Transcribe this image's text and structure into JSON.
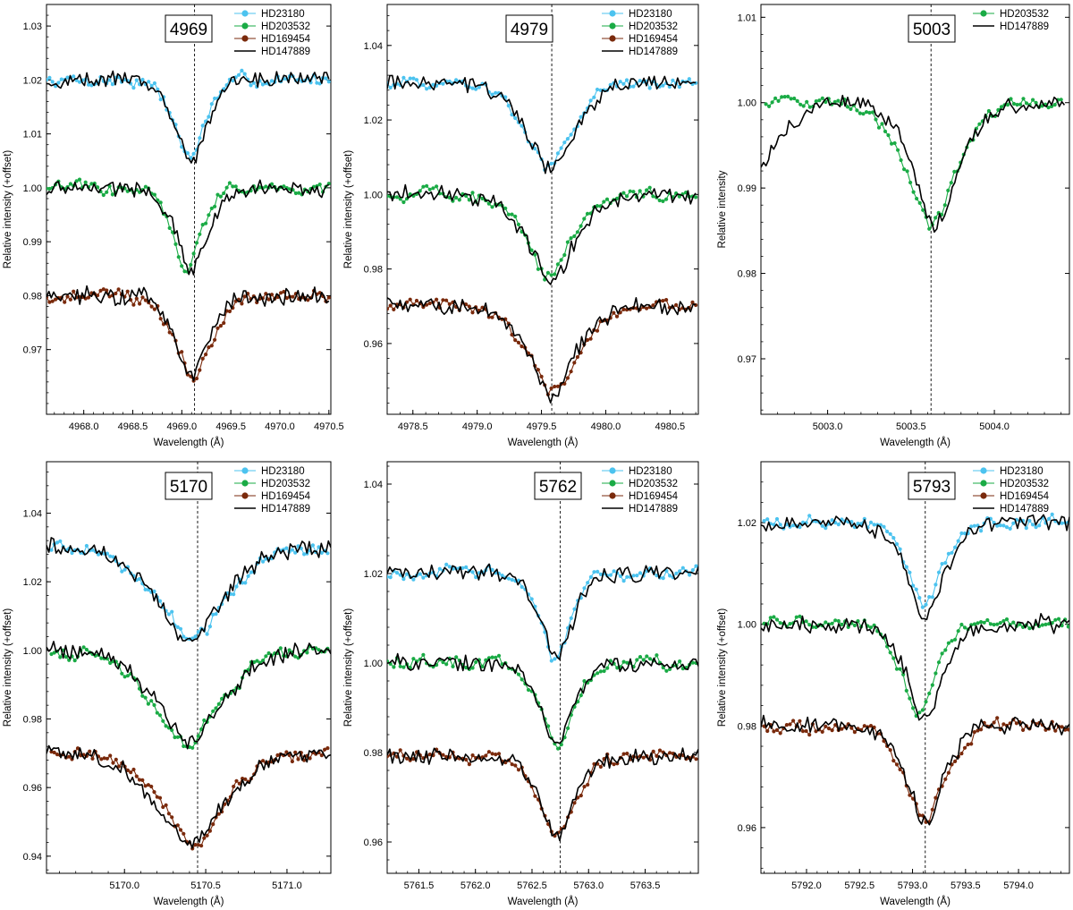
{
  "figure": {
    "colors": {
      "HD23180": "#4cc3ef",
      "HD203532": "#1aab45",
      "HD169454": "#7a2a0c",
      "HD147889": "#000000"
    }
  },
  "chart_data": [
    {
      "type": "line",
      "title": "4969",
      "xlabel": "Wavelength (Å)",
      "ylabel": "Relative intensity (+offset)",
      "xlim": [
        4967.62,
        4970.52
      ],
      "ylim": [
        0.958,
        1.034
      ],
      "xticks": [
        "4968.0",
        "4968.5",
        "4969.0",
        "4969.5",
        "4970.0",
        "4970.5"
      ],
      "yticks": [
        "0.97",
        "0.98",
        "0.99",
        "1.00",
        "1.01",
        "1.02",
        "1.03"
      ],
      "center": 4969.13,
      "legend": [
        "HD23180",
        "HD203532",
        "HD169454",
        "HD147889"
      ],
      "series": [
        {
          "name": "HD23180",
          "kind": "markers",
          "base": 1.02,
          "depth": 0.0145,
          "center": 4969.08,
          "width": 0.18,
          "xmin": 4967.62,
          "xmax": 4970.5
        },
        {
          "name": "HD203532",
          "kind": "markers",
          "base": 1.0,
          "depth": 0.015,
          "center": 4969.05,
          "width": 0.17,
          "xmin": 4967.62,
          "xmax": 4970.5
        },
        {
          "name": "HD169454",
          "kind": "markers",
          "base": 0.98,
          "depth": 0.015,
          "center": 4969.12,
          "width": 0.22,
          "xmin": 4967.62,
          "xmax": 4970.5
        },
        {
          "name": "HD147889",
          "kind": "line",
          "bases": [
            1.02,
            1.0,
            0.98
          ],
          "depth": 0.015,
          "center": 4969.1,
          "width": 0.19,
          "xmin": 4967.62,
          "xmax": 4970.5
        }
      ]
    },
    {
      "type": "line",
      "title": "4979",
      "xlabel": "Wavelength (Å)",
      "ylabel": "Relative intensity (+offset)",
      "xlim": [
        4978.3,
        4980.72
      ],
      "ylim": [
        0.941,
        1.051
      ],
      "xticks": [
        "4978.5",
        "4979.0",
        "4979.5",
        "4980.0",
        "4980.5"
      ],
      "yticks": [
        "0.96",
        "0.98",
        "1.00",
        "1.02",
        "1.04"
      ],
      "center": 4979.58,
      "legend": [
        "HD23180",
        "HD203532",
        "HD169454",
        "HD147889"
      ],
      "series": [
        {
          "name": "HD23180",
          "kind": "markers",
          "base": 1.03,
          "depth": 0.0225,
          "center": 4979.55,
          "width": 0.22,
          "xmin": 4978.3,
          "xmax": 4980.7
        },
        {
          "name": "HD203532",
          "kind": "markers",
          "base": 1.0,
          "depth": 0.022,
          "center": 4979.55,
          "width": 0.2,
          "xmin": 4978.3,
          "xmax": 4980.7
        },
        {
          "name": "HD169454",
          "kind": "markers",
          "base": 0.97,
          "depth": 0.023,
          "center": 4979.6,
          "width": 0.24,
          "xmin": 4978.3,
          "xmax": 4980.7
        },
        {
          "name": "HD147889",
          "kind": "line",
          "bases": [
            1.03,
            1.0,
            0.97
          ],
          "depth": 0.023,
          "center": 4979.58,
          "width": 0.22,
          "xmin": 4978.3,
          "xmax": 4980.7
        }
      ]
    },
    {
      "type": "line",
      "title": "5003",
      "xlabel": "Wavelength (Å)",
      "ylabel": "Relative intensity",
      "xlim": [
        5002.6,
        5004.45
      ],
      "ylim": [
        0.9635,
        1.0115
      ],
      "xticks": [
        "5003.0",
        "5003.5",
        "5004.0"
      ],
      "yticks": [
        "0.97",
        "0.98",
        "0.99",
        "1.00",
        "1.01"
      ],
      "center": 5003.62,
      "legend": [
        "HD203532",
        "HD147889"
      ],
      "series": [
        {
          "name": "HD203532",
          "kind": "markers",
          "base": 1.0,
          "depth": 0.014,
          "center": 5003.63,
          "width": 0.18,
          "xmin": 5002.63,
          "xmax": 5004.4
        },
        {
          "name": "HD147889",
          "kind": "line",
          "bases": [
            1.0
          ],
          "depth": 0.014,
          "center": 5003.65,
          "width": 0.16,
          "xmin": 5002.6,
          "xmax": 5004.42
        }
      ]
    },
    {
      "type": "line",
      "title": "5170",
      "xlabel": "Wavelength (Å)",
      "ylabel": "Relative intensity (+offset)",
      "xlim": [
        5169.52,
        5171.27
      ],
      "ylim": [
        0.935,
        1.055
      ],
      "xticks": [
        "5170.0",
        "5170.5",
        "5171.0"
      ],
      "yticks": [
        "0.94",
        "0.96",
        "0.98",
        "1.00",
        "1.02",
        "1.04"
      ],
      "center": 5170.45,
      "legend": [
        "HD23180",
        "HD203532",
        "HD169454",
        "HD147889"
      ],
      "series": [
        {
          "name": "HD23180",
          "kind": "markers",
          "base": 1.03,
          "depth": 0.027,
          "center": 5170.42,
          "width": 0.25,
          "xmin": 5169.55,
          "xmax": 5171.25
        },
        {
          "name": "HD203532",
          "kind": "markers",
          "base": 1.0,
          "depth": 0.027,
          "center": 5170.38,
          "width": 0.25,
          "xmin": 5169.55,
          "xmax": 5171.25
        },
        {
          "name": "HD169454",
          "kind": "markers",
          "base": 0.97,
          "depth": 0.027,
          "center": 5170.42,
          "width": 0.22,
          "xmin": 5169.55,
          "xmax": 5171.25
        },
        {
          "name": "HD147889",
          "kind": "line",
          "bases": [
            1.03,
            1.0,
            0.97
          ],
          "depth": 0.027,
          "center": 5170.4,
          "width": 0.24,
          "xmin": 5169.52,
          "xmax": 5171.27
        }
      ]
    },
    {
      "type": "line",
      "title": "5762",
      "xlabel": "Wavelength (Å)",
      "ylabel": "Relative intensity (+offset)",
      "xlim": [
        5761.22,
        5763.97
      ],
      "ylim": [
        0.953,
        1.045
      ],
      "xticks": [
        "5761.5",
        "5762.0",
        "5762.5",
        "5763.0",
        "5763.5"
      ],
      "yticks": [
        "0.96",
        "0.98",
        "1.00",
        "1.02",
        "1.04"
      ],
      "center": 5762.75,
      "legend": [
        "HD23180",
        "HD203532",
        "HD169454",
        "HD147889"
      ],
      "series": [
        {
          "name": "HD23180",
          "kind": "markers",
          "base": 1.02,
          "depth": 0.019,
          "center": 5762.7,
          "width": 0.16,
          "xmin": 5761.22,
          "xmax": 5763.95
        },
        {
          "name": "HD203532",
          "kind": "markers",
          "base": 1.0,
          "depth": 0.019,
          "center": 5762.72,
          "width": 0.16,
          "xmin": 5761.22,
          "xmax": 5763.95
        },
        {
          "name": "HD169454",
          "kind": "markers",
          "base": 0.979,
          "depth": 0.018,
          "center": 5762.72,
          "width": 0.18,
          "xmin": 5761.22,
          "xmax": 5763.95
        },
        {
          "name": "HD147889",
          "kind": "line",
          "bases": [
            1.02,
            1.0,
            0.979
          ],
          "depth": 0.019,
          "center": 5762.72,
          "width": 0.16,
          "xmin": 5761.22,
          "xmax": 5763.97
        }
      ]
    },
    {
      "type": "line",
      "title": "5793",
      "xlabel": "Wavelength (Å)",
      "ylabel": "Relative intensity (+offset)",
      "xlim": [
        5791.57,
        5794.48
      ],
      "ylim": [
        0.951,
        1.032
      ],
      "xticks": [
        "5792.0",
        "5792.5",
        "5793.0",
        "5793.5",
        "5794.0"
      ],
      "yticks": [
        "0.96",
        "0.98",
        "1.00",
        "1.02"
      ],
      "center": 5793.12,
      "legend": [
        "HD23180",
        "HD203532",
        "HD169454",
        "HD147889"
      ],
      "series": [
        {
          "name": "HD23180",
          "kind": "markers",
          "base": 1.02,
          "depth": 0.016,
          "center": 5793.12,
          "width": 0.2,
          "xmin": 5791.6,
          "xmax": 5794.47
        },
        {
          "name": "HD203532",
          "kind": "markers",
          "base": 1.0,
          "depth": 0.018,
          "center": 5793.05,
          "width": 0.18,
          "xmin": 5791.6,
          "xmax": 5794.47
        },
        {
          "name": "HD169454",
          "kind": "markers",
          "base": 0.98,
          "depth": 0.0185,
          "center": 5793.12,
          "width": 0.22,
          "xmin": 5791.6,
          "xmax": 5794.47
        },
        {
          "name": "HD147889",
          "kind": "line",
          "bases": [
            1.02,
            1.0,
            0.98
          ],
          "depth": 0.019,
          "center": 5793.12,
          "width": 0.2,
          "xmin": 5791.57,
          "xmax": 5794.48
        }
      ]
    }
  ]
}
